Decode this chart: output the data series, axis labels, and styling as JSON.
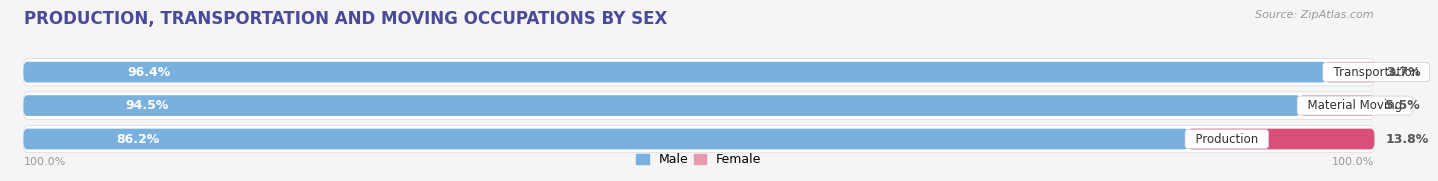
{
  "title": "PRODUCTION, TRANSPORTATION AND MOVING OCCUPATIONS BY SEX",
  "source": "Source: ZipAtlas.com",
  "categories": [
    "Transportation",
    "Material Moving",
    "Production"
  ],
  "male_values": [
    96.4,
    94.5,
    86.2
  ],
  "female_values": [
    3.7,
    5.5,
    13.8
  ],
  "male_color": "#7ab0de",
  "female_colors": [
    "#e899b0",
    "#e899b0",
    "#d94f7a"
  ],
  "row_bg_color": "#ececec",
  "background_color": "#f5f5f5",
  "title_color": "#4a4a9a",
  "title_fontsize": 12,
  "label_fontsize": 9,
  "source_fontsize": 8,
  "axis_label_left": "100.0%",
  "axis_label_right": "100.0%",
  "legend_male": "Male",
  "legend_female": "Female"
}
